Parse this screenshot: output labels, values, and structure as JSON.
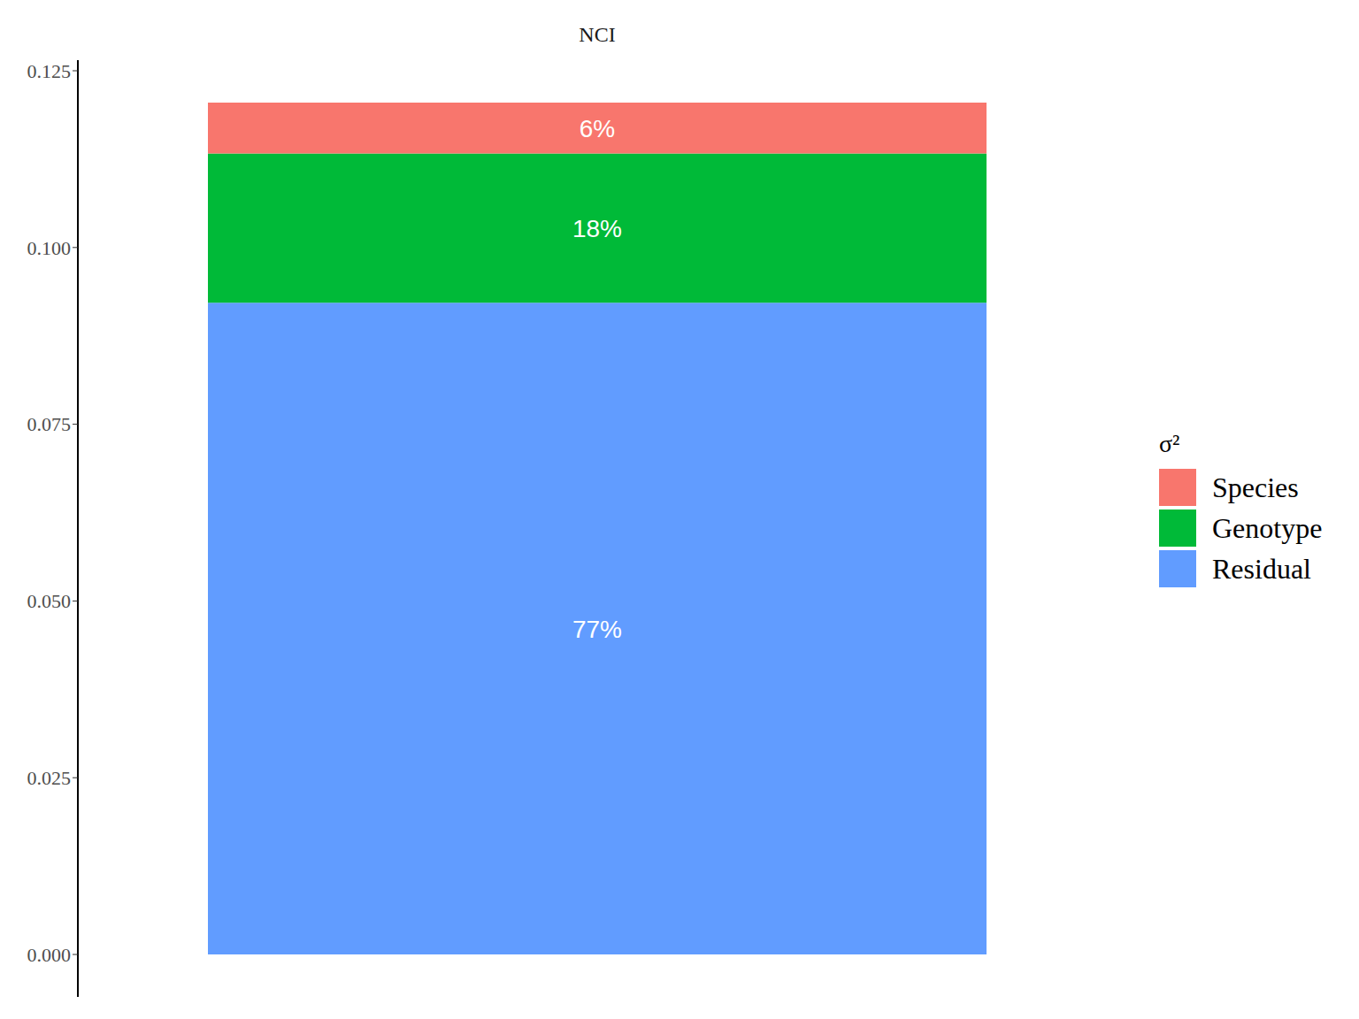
{
  "chart_data": {
    "type": "bar",
    "title": "NCI",
    "categories": [
      null
    ],
    "stacked": true,
    "data_labels": true,
    "grid": false,
    "legend": "right",
    "legend_title": "σ²",
    "tick_labels": "y",
    "ylim": [
      -0.006,
      0.1265
    ],
    "yticks": [
      {
        "value": 0,
        "label": "0.000"
      },
      {
        "value": 0.025,
        "label": "0.025"
      },
      {
        "value": 0.05,
        "label": "0.050"
      },
      {
        "value": 0.075,
        "label": "0.075"
      },
      {
        "value": 0.1,
        "label": "0.100"
      },
      {
        "value": 0.125,
        "label": "0.125"
      }
    ],
    "series": [
      {
        "name": "Species",
        "color": "#F8766D",
        "values": [
          0.0072
        ],
        "share_labels": [
          "6%"
        ]
      },
      {
        "name": "Genotype",
        "color": "#00BA38",
        "values": [
          0.0211
        ],
        "share_labels": [
          "18%"
        ]
      },
      {
        "name": "Residual",
        "color": "#619CFF",
        "values": [
          0.0922
        ],
        "share_labels": [
          "77%"
        ]
      }
    ]
  }
}
